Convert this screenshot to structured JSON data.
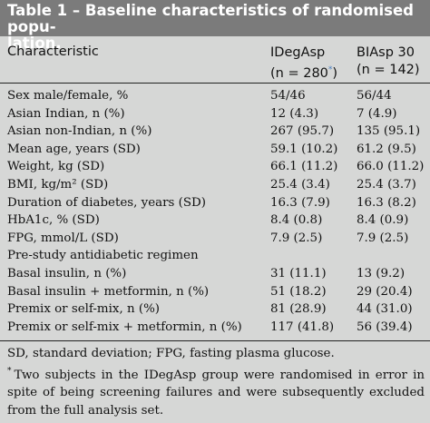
{
  "title": {
    "line1": "Table 1 – Baseline characteristics of randomised popu-",
    "line2": "lation."
  },
  "header": {
    "characteristic": "Characteristic",
    "col1_name": "IDegAsp",
    "col1_n": "(n = 280",
    "col1_mark": "*",
    "col1_close": ")",
    "col2_name": "BIAsp 30",
    "col2_n": "(n = 142)"
  },
  "rows": [
    {
      "label": "Sex male/female, %",
      "v1": "54/46",
      "v2": "56/44"
    },
    {
      "label": "Asian Indian, n (%)",
      "v1": "12 (4.3)",
      "v2": "7 (4.9)"
    },
    {
      "label": "Asian non-Indian, n (%)",
      "v1": "267 (95.7)",
      "v2": "135 (95.1)"
    },
    {
      "label": "Mean age, years (SD)",
      "v1": "59.1 (10.2)",
      "v2": "61.2 (9.5)"
    },
    {
      "label": "Weight, kg (SD)",
      "v1": "66.1 (11.2)",
      "v2": "66.0 (11.2)"
    },
    {
      "label": "BMI, kg/m² (SD)",
      "v1": "25.4 (3.4)",
      "v2": "25.4 (3.7)"
    },
    {
      "label": "Duration of diabetes, years (SD)",
      "v1": "16.3 (7.9)",
      "v2": "16.3 (8.2)"
    },
    {
      "label": "HbA1c, % (SD)",
      "v1": "8.4 (0.8)",
      "v2": "8.4 (0.9)"
    },
    {
      "label": "FPG, mmol/L (SD)",
      "v1": "7.9 (2.5)",
      "v2": "7.9 (2.5)"
    },
    {
      "label": "Pre-study antidiabetic regimen",
      "v1": "",
      "v2": ""
    },
    {
      "label": "Basal insulin, n (%)",
      "v1": "31 (11.1)",
      "v2": "13 (9.2)"
    },
    {
      "label": "Basal insulin + metformin, n (%)",
      "v1": "51 (18.2)",
      "v2": "29 (20.4)"
    },
    {
      "label": "Premix or self-mix, n (%)",
      "v1": "81 (28.9)",
      "v2": "44 (31.0)"
    },
    {
      "label": "Premix or self-mix + metformin, n (%)",
      "v1": "117 (41.8)",
      "v2": "56 (39.4)"
    }
  ],
  "footnotes": {
    "abbrev": "SD, standard deviation; FPG, fasting plasma glucose.",
    "mark": "*",
    "note": "Two subjects in the IDegAsp group were randomised in error in spite of being screening failures and were subsequently excluded from the full analysis set."
  },
  "colors": {
    "title_bg": "#7b7b7b",
    "page_bg": "#d6d7d6"
  }
}
